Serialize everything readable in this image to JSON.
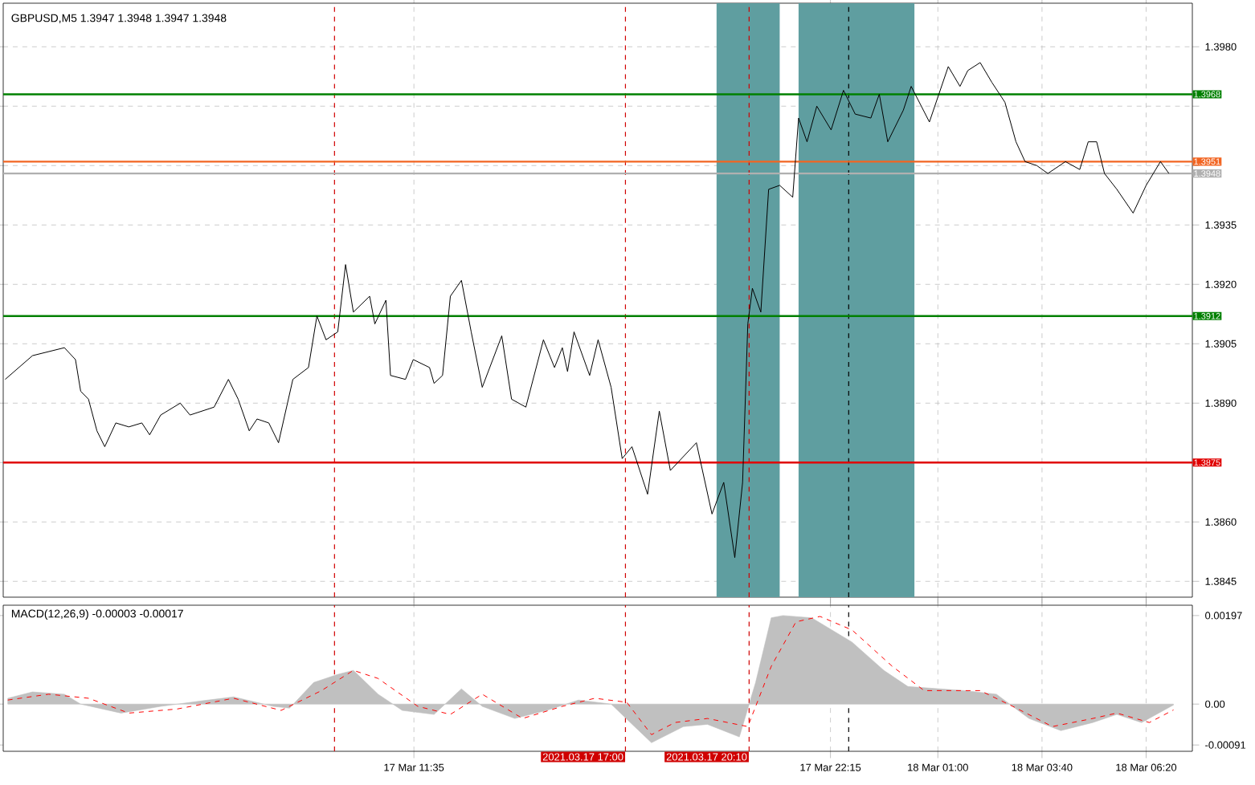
{
  "chart_data": [
    {
      "type": "line",
      "title": "GBPUSD,M5  1.3947 1.3948 1.3947 1.3948",
      "color": "#000000",
      "line_style": "solid",
      "x": [
        "2021-03-17T01:07",
        "2021-03-17T01:49",
        "2021-03-17T02:38",
        "2021-03-17T02:55",
        "2021-03-17T03:03",
        "2021-03-17T03:15",
        "2021-03-17T03:28",
        "2021-03-17T03:40",
        "2021-03-17T03:57",
        "2021-03-17T04:17",
        "2021-03-17T04:37",
        "2021-03-17T04:49",
        "2021-03-17T05:06",
        "2021-03-17T05:36",
        "2021-03-17T05:51",
        "2021-03-17T06:28",
        "2021-03-17T06:50",
        "2021-03-17T07:05",
        "2021-03-17T07:22",
        "2021-03-17T07:34",
        "2021-03-17T07:52",
        "2021-03-17T08:07",
        "2021-03-17T08:29",
        "2021-03-17T08:53",
        "2021-03-17T09:06",
        "2021-03-17T09:20",
        "2021-03-17T09:38",
        "2021-03-17T09:50",
        "2021-03-17T10:02",
        "2021-03-17T10:27",
        "2021-03-17T10:35",
        "2021-03-17T10:52",
        "2021-03-17T10:59",
        "2021-03-17T11:22",
        "2021-03-17T11:34",
        "2021-03-17T11:59",
        "2021-03-17T12:06",
        "2021-03-17T12:19",
        "2021-03-17T12:31",
        "2021-03-17T12:48",
        "2021-03-17T13:03",
        "2021-03-17T13:20",
        "2021-03-17T13:50",
        "2021-03-17T14:05",
        "2021-03-17T14:27",
        "2021-03-17T14:54",
        "2021-03-17T15:11",
        "2021-03-17T15:23",
        "2021-03-17T15:31",
        "2021-03-17T15:41",
        "2021-03-17T16:05",
        "2021-03-17T16:18",
        "2021-03-17T16:38",
        "2021-03-17T16:55",
        "2021-03-17T17:10",
        "2021-03-17T17:34",
        "2021-03-17T17:52",
        "2021-03-17T18:09",
        "2021-03-17T18:49",
        "2021-03-17T19:13",
        "2021-03-17T19:31",
        "2021-03-17T19:48",
        "2021-03-17T20:00",
        "2021-03-17T20:08",
        "2021-03-17T20:15",
        "2021-03-17T20:28",
        "2021-03-17T20:40",
        "2021-03-17T20:57",
        "2021-03-17T21:17",
        "2021-03-17T21:26",
        "2021-03-17T21:39",
        "2021-03-17T21:54",
        "2021-03-17T22:16",
        "2021-03-17T22:35",
        "2021-03-17T22:53",
        "2021-03-17T23:17",
        "2021-03-17T23:30",
        "2021-03-17T23:43",
        "2021-03-18T00:07",
        "2021-03-18T00:19",
        "2021-03-18T00:47",
        "2021-03-18T01:16",
        "2021-03-18T01:34",
        "2021-03-18T01:46",
        "2021-03-18T02:05",
        "2021-03-18T02:23",
        "2021-03-18T02:43",
        "2021-03-18T03:00",
        "2021-03-18T03:14",
        "2021-03-18T03:32",
        "2021-03-18T03:49",
        "2021-03-18T04:16",
        "2021-03-18T04:38",
        "2021-03-18T04:51",
        "2021-03-18T05:04",
        "2021-03-18T05:16",
        "2021-03-18T05:35",
        "2021-03-18T06:00",
        "2021-03-18T06:20",
        "2021-03-18T06:42",
        "2021-03-18T06:55"
      ],
      "values": [
        1.3896,
        1.3902,
        1.3904,
        1.3901,
        1.3893,
        1.3891,
        1.3883,
        1.3879,
        1.3885,
        1.3884,
        1.3885,
        1.3882,
        1.3887,
        1.389,
        1.3887,
        1.3889,
        1.3896,
        1.3891,
        1.3883,
        1.3886,
        1.3885,
        1.388,
        1.3896,
        1.3899,
        1.3912,
        1.3906,
        1.3908,
        1.3925,
        1.3913,
        1.3917,
        1.391,
        1.3916,
        1.3897,
        1.3896,
        1.3901,
        1.3899,
        1.3895,
        1.3897,
        1.3917,
        1.3921,
        1.3908,
        1.3894,
        1.3907,
        1.3891,
        1.3889,
        1.3906,
        1.3899,
        1.3904,
        1.3898,
        1.3908,
        1.3897,
        1.3906,
        1.3894,
        1.3876,
        1.3879,
        1.3867,
        1.3888,
        1.3873,
        1.388,
        1.3862,
        1.387,
        1.3851,
        1.387,
        1.391,
        1.3919,
        1.3913,
        1.3944,
        1.3945,
        1.3942,
        1.3962,
        1.3956,
        1.3965,
        1.3959,
        1.3969,
        1.3963,
        1.3962,
        1.3968,
        1.3956,
        1.3964,
        1.397,
        1.3961,
        1.3975,
        1.397,
        1.3974,
        1.3976,
        1.3971,
        1.3966,
        1.3956,
        1.3951,
        1.395,
        1.3948,
        1.3951,
        1.3949,
        1.3956,
        1.3956,
        1.3948,
        1.3944,
        1.3938,
        1.3945,
        1.3951,
        1.3948
      ],
      "xlim": [
        "2021-03-17T01:04",
        "2021-03-18T07:31"
      ],
      "ylim": [
        1.3841,
        1.3991
      ],
      "xticks": [
        {
          "value": "2021-03-17T11:35",
          "label": null
        },
        {
          "value": "2021-03-17T22:15",
          "label": null
        },
        {
          "value": "2021-03-18T01:00",
          "label": null
        },
        {
          "value": "2021-03-18T03:40",
          "label": null
        },
        {
          "value": "2021-03-18T06:20",
          "label": null
        }
      ],
      "yticks": [
        1.3845,
        {
          "value": 1.386,
          "label": "1.3860"
        },
        {
          "value": 1.3875,
          "label": null
        },
        {
          "value": 1.389,
          "label": "1.3890"
        },
        1.3905,
        {
          "value": 1.392,
          "label": "1.3920"
        },
        1.3935,
        {
          "value": 1.395,
          "label": null
        },
        {
          "value": 1.3965,
          "label": null
        },
        {
          "value": 1.398,
          "label": "1.3980"
        }
      ],
      "tick_labels": "y",
      "grid": true,
      "bands": [
        {
          "axis": "x",
          "from": "2021-03-17T19:20",
          "to": "2021-03-17T20:57",
          "color": "#5f9ea0"
        },
        {
          "axis": "x",
          "from": "2021-03-17T21:26",
          "to": "2021-03-18T00:24",
          "color": "#5f9ea0"
        }
      ],
      "ref_lines": [
        {
          "axis": "x",
          "value": "2021-03-17T09:33",
          "color": "#d00000",
          "line_style": "dashed"
        },
        {
          "axis": "x",
          "value": "2021-03-17T17:00",
          "color": "#d00000",
          "line_style": "dashed"
        },
        {
          "axis": "x",
          "value": "2021-03-17T20:10",
          "color": "#d00000",
          "line_style": "dashed"
        },
        {
          "axis": "x",
          "value": "2021-03-17T22:43",
          "color": "#000000",
          "line_style": "dashed"
        },
        {
          "axis": "y",
          "value": 1.3968,
          "label": "1.3968",
          "color": "#008000",
          "line_style": "solid"
        },
        {
          "axis": "y",
          "value": 1.3951,
          "label": "1.3951",
          "color": "#f26522",
          "line_style": "solid"
        },
        {
          "axis": "y",
          "value": 1.3948,
          "label": "1.3948",
          "color": "#b0b0b0",
          "line_style": "solid"
        },
        {
          "axis": "y",
          "value": 1.3912,
          "label": "1.3912",
          "color": "#008000",
          "line_style": "solid"
        },
        {
          "axis": "y",
          "value": 1.3875,
          "label": "1.3875",
          "color": "#e00000",
          "line_style": "solid"
        }
      ]
    },
    {
      "type": "area",
      "title": "MACD(12,26,9) -0.00003 -0.00017",
      "series": [
        {
          "type": "area",
          "color": "#c0c0c0",
          "x": [
            "2021-03-17T01:11",
            "2021-03-17T01:49",
            "2021-03-17T02:38",
            "2021-03-17T03:03",
            "2021-03-17T04:05",
            "2021-03-17T05:06",
            "2021-03-17T06:08",
            "2021-03-17T06:58",
            "2021-03-17T07:59",
            "2021-03-17T08:24",
            "2021-03-17T09:01",
            "2021-03-17T09:38",
            "2021-03-17T10:02",
            "2021-03-17T10:40",
            "2021-03-17T11:17",
            "2021-03-17T12:06",
            "2021-03-17T12:48",
            "2021-03-17T13:20",
            "2021-03-17T14:10",
            "2021-03-17T14:59",
            "2021-03-17T15:48",
            "2021-03-17T16:38",
            "2021-03-17T17:14",
            "2021-03-17T17:40",
            "2021-03-17T18:29",
            "2021-03-17T19:06",
            "2021-03-17T19:55",
            "2021-03-17T20:20",
            "2021-03-17T20:44",
            "2021-03-17T21:02",
            "2021-03-17T21:46",
            "2021-03-17T22:48",
            "2021-03-17T23:37",
            "2021-03-18T00:14",
            "2021-03-18T01:41",
            "2021-03-18T02:30",
            "2021-03-18T03:20",
            "2021-03-18T04:09",
            "2021-03-18T04:58",
            "2021-03-18T05:35",
            "2021-03-18T06:13",
            "2021-03-18T07:02"
          ],
          "values": [
            0.00013,
            0.00027,
            0.00022,
            0,
            -0.0002,
            -5e-05,
            7e-05,
            0.00016,
            -5e-05,
            -9e-05,
            0.00048,
            0.00066,
            0.00075,
            0.00022,
            -0.00014,
            -0.00023,
            0.00034,
            -5e-05,
            -0.00032,
            -0.00014,
            9e-05,
            0,
            -0.0005,
            -0.00086,
            -0.0005,
            -0.00045,
            -0.00073,
            0.00048,
            0.00192,
            0.00197,
            0.00192,
            0.00138,
            0.00075,
            0.00039,
            0.0003,
            0.00022,
            -0.00032,
            -0.00059,
            -0.00041,
            -0.00023,
            -0.00041,
            -2e-05
          ]
        },
        {
          "type": "line",
          "color": "#ff0000",
          "line_style": "dashed",
          "x": [
            "2021-03-17T01:11",
            "2021-03-17T02:14",
            "2021-03-17T03:15",
            "2021-03-17T04:17",
            "2021-03-17T05:31",
            "2021-03-17T06:58",
            "2021-03-17T08:11",
            "2021-03-17T09:13",
            "2021-03-17T10:02",
            "2021-03-17T10:40",
            "2021-03-17T11:41",
            "2021-03-17T12:31",
            "2021-03-17T13:20",
            "2021-03-17T14:22",
            "2021-03-17T15:23",
            "2021-03-17T16:13",
            "2021-03-17T17:02",
            "2021-03-17T17:40",
            "2021-03-17T18:16",
            "2021-03-17T19:06",
            "2021-03-17T20:08",
            "2021-03-17T20:44",
            "2021-03-17T21:22",
            "2021-03-17T21:59",
            "2021-03-17T22:48",
            "2021-03-17T23:50",
            "2021-03-18T00:39",
            "2021-03-18T02:05",
            "2021-03-18T02:55",
            "2021-03-18T03:56",
            "2021-03-18T04:58",
            "2021-03-18T05:35",
            "2021-03-18T06:25",
            "2021-03-18T07:02"
          ],
          "values": [
            9e-05,
            0.00022,
            0.00013,
            -0.0002,
            -0.00011,
            0.00013,
            -0.00014,
            0.0003,
            0.00075,
            0.00057,
            -5e-05,
            -0.00023,
            0.00022,
            -0.00032,
            -5e-05,
            0.00013,
            4e-05,
            -0.00068,
            -0.00041,
            -0.00032,
            -0.0005,
            0.00084,
            0.00183,
            0.00195,
            0.00165,
            0.00084,
            0.0003,
            0.0003,
            -5e-05,
            -0.0005,
            -0.00032,
            -0.0002,
            -0.00041,
            -0.00013
          ]
        }
      ],
      "xlim": [
        "2021-03-17T01:04",
        "2021-03-18T07:31"
      ],
      "ylim": [
        -0.00105,
        0.0022
      ],
      "xticks": [
        {
          "value": "2021-03-17T11:35",
          "label": "17 Mar 11:35"
        },
        {
          "value": "2021-03-17T22:15",
          "label": "17 Mar 22:15"
        },
        {
          "value": "2021-03-18T01:00",
          "label": "18 Mar 01:00"
        },
        {
          "value": "2021-03-18T03:40",
          "label": "18 Mar 03:40"
        },
        {
          "value": "2021-03-18T06:20",
          "label": "18 Mar 06:20"
        }
      ],
      "yticks": [
        -0.00091,
        {
          "value": 0,
          "label": "0.00"
        },
        0.00197
      ],
      "grid": "x",
      "ref_lines": [
        {
          "axis": "x",
          "value": "2021-03-17T09:33",
          "color": "#d00000",
          "line_style": "dashed"
        },
        {
          "axis": "x",
          "value": "2021-03-17T17:00",
          "label": "2021.03.17 17:00",
          "color": "#d00000",
          "line_style": "dashed"
        },
        {
          "axis": "x",
          "value": "2021-03-17T20:10",
          "label": "2021.03.17 20:10",
          "color": "#d00000",
          "line_style": "dashed"
        },
        {
          "axis": "x",
          "value": "2021-03-17T22:43",
          "color": "#000000",
          "line_style": "dashed"
        }
      ]
    }
  ]
}
